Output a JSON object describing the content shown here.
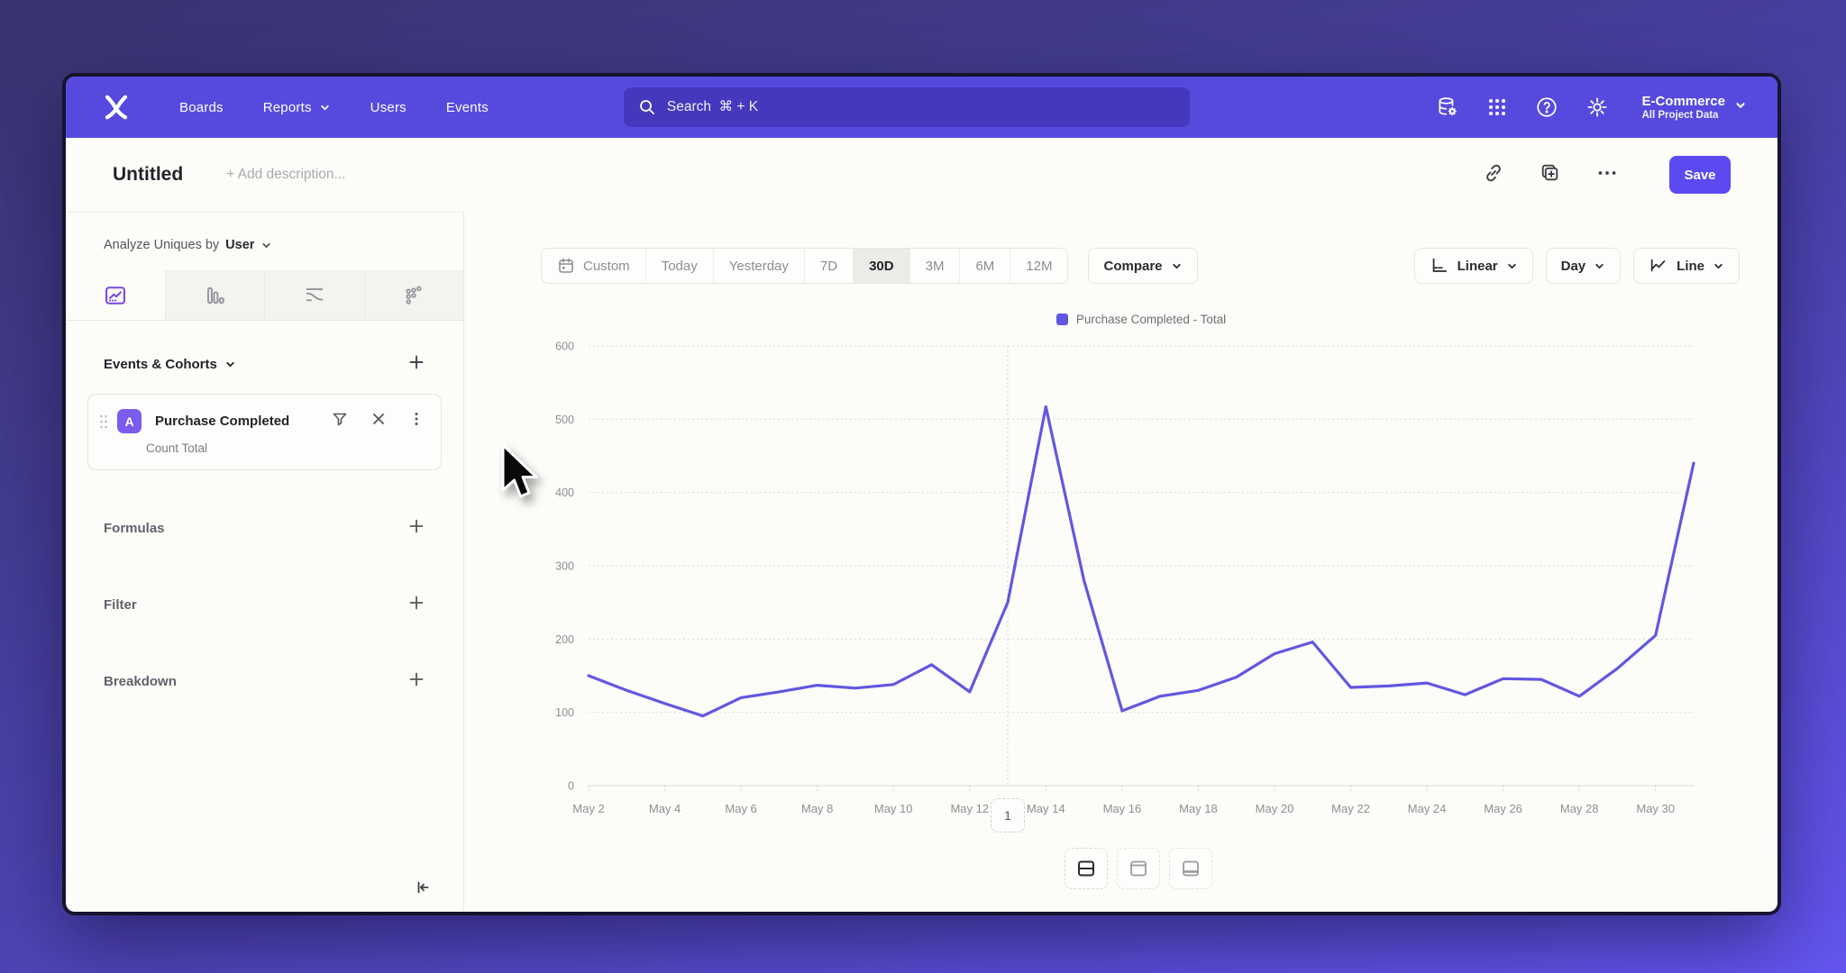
{
  "nav": {
    "items": [
      "Boards",
      "Reports",
      "Users",
      "Events"
    ],
    "dropdown_items": [
      "Reports"
    ],
    "search_placeholder": "Search  ⌘ + K",
    "workspace": {
      "name": "E-Commerce",
      "subtitle": "All Project Data"
    }
  },
  "header": {
    "title": "Untitled",
    "description_placeholder": "+ Add description...",
    "save_label": "Save"
  },
  "sidebar": {
    "analyze_label": "Analyze Uniques by",
    "analyze_value": "User",
    "events_cohorts_label": "Events & Cohorts",
    "event": {
      "badge": "A",
      "name": "Purchase Completed",
      "metric": "Count Total"
    },
    "sections": [
      {
        "label": "Formulas"
      },
      {
        "label": "Filter"
      },
      {
        "label": "Breakdown"
      }
    ]
  },
  "toolbar": {
    "ranges": [
      "Custom",
      "Today",
      "Yesterday",
      "7D",
      "30D",
      "3M",
      "6M",
      "12M"
    ],
    "selected_range": "30D",
    "compare_label": "Compare",
    "scale_label": "Linear",
    "interval_label": "Day",
    "chart_type_label": "Line"
  },
  "chart_data": {
    "type": "line",
    "x": [
      "May 2",
      "May 3",
      "May 4",
      "May 5",
      "May 6",
      "May 7",
      "May 8",
      "May 9",
      "May 10",
      "May 11",
      "May 12",
      "May 13",
      "May 14",
      "May 15",
      "May 16",
      "May 17",
      "May 18",
      "May 19",
      "May 20",
      "May 21",
      "May 22",
      "May 23",
      "May 24",
      "May 25",
      "May 26",
      "May 27",
      "May 28",
      "May 29",
      "May 30",
      "May 31"
    ],
    "x_tick_every": 2,
    "series": [
      {
        "name": "Purchase Completed - Total",
        "color": "#6257e0",
        "values": [
          150,
          130,
          112,
          95,
          120,
          128,
          137,
          133,
          138,
          165,
          128,
          250,
          517,
          280,
          102,
          122,
          130,
          148,
          180,
          196,
          134,
          136,
          140,
          124,
          146,
          145,
          122,
          160,
          205,
          440
        ]
      }
    ],
    "ylim": [
      0,
      600
    ],
    "y_ticks": [
      0,
      100,
      200,
      300,
      400,
      500,
      600
    ],
    "grid": "horizontal-dotted",
    "legend_position": "top-center",
    "annotation_vline_x": "May 13"
  },
  "footer": {
    "page": "1"
  },
  "icons": {
    "nav_right": [
      "data-management-icon",
      "apps-grid-icon",
      "help-icon",
      "settings-icon"
    ],
    "title_actions": [
      "link-icon",
      "duplicate-icon",
      "more-icon"
    ],
    "sidebar_tabs": [
      "line-chart-tab-icon",
      "bar-chart-tab-icon",
      "flow-tab-icon",
      "scatter-tab-icon"
    ],
    "layout_toggles": [
      "split-horizontal-icon",
      "top-panel-icon",
      "bottom-panel-icon"
    ]
  },
  "colors": {
    "nav_background": "#564ade",
    "accent": "#5b4af0",
    "line": "#6257e0"
  }
}
